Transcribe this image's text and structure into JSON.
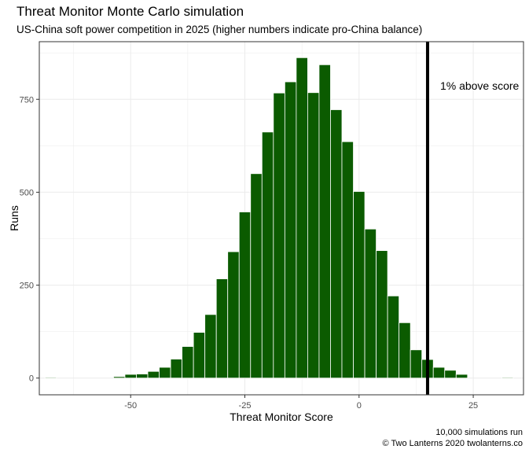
{
  "chart_data": {
    "type": "bar",
    "title": "Threat Monitor Monte Carlo simulation",
    "subtitle": "US-China soft power competition in 2025 (higher numbers indicate pro-China balance)",
    "xlabel": "Threat Monitor Score",
    "ylabel": "Runs",
    "xlim": [
      -70,
      36
    ],
    "ylim": [
      -45,
      905
    ],
    "xticks": [
      -50,
      -25,
      0,
      25
    ],
    "yticks": [
      0,
      250,
      500,
      750
    ],
    "bin_width": 2.5,
    "bins": [
      {
        "x": -67.5,
        "y": 1
      },
      {
        "x": -52.5,
        "y": 4
      },
      {
        "x": -50,
        "y": 10
      },
      {
        "x": -47.5,
        "y": 11
      },
      {
        "x": -45,
        "y": 18
      },
      {
        "x": -42.5,
        "y": 29
      },
      {
        "x": -40,
        "y": 51
      },
      {
        "x": -37.5,
        "y": 85
      },
      {
        "x": -35,
        "y": 123
      },
      {
        "x": -32.5,
        "y": 171
      },
      {
        "x": -30,
        "y": 267
      },
      {
        "x": -27.5,
        "y": 340
      },
      {
        "x": -25,
        "y": 447
      },
      {
        "x": -22.5,
        "y": 550
      },
      {
        "x": -20,
        "y": 662
      },
      {
        "x": -17.5,
        "y": 767
      },
      {
        "x": -15,
        "y": 797
      },
      {
        "x": -12.5,
        "y": 862
      },
      {
        "x": -10,
        "y": 768
      },
      {
        "x": -7.5,
        "y": 843
      },
      {
        "x": -5,
        "y": 722
      },
      {
        "x": -2.5,
        "y": 636
      },
      {
        "x": 0,
        "y": 502
      },
      {
        "x": 2.5,
        "y": 401
      },
      {
        "x": 5,
        "y": 343
      },
      {
        "x": 7.5,
        "y": 221
      },
      {
        "x": 10,
        "y": 149
      },
      {
        "x": 12.5,
        "y": 76
      },
      {
        "x": 15,
        "y": 50
      },
      {
        "x": 17.5,
        "y": 29
      },
      {
        "x": 20,
        "y": 21
      },
      {
        "x": 22.5,
        "y": 10
      },
      {
        "x": 32.5,
        "y": 1
      }
    ],
    "vline": {
      "x": 15,
      "label": "1% above score"
    },
    "grid": true,
    "colors": {
      "bar_fill": "#0b5b00",
      "bar_outline": "#ffffff",
      "vline": "#000000",
      "grid": "#ebebeb",
      "panel_border": "#333333"
    }
  },
  "caption": {
    "line1": "10,000 simulations run",
    "line2": "© Two Lanterns 2020 twolanterns.co"
  }
}
